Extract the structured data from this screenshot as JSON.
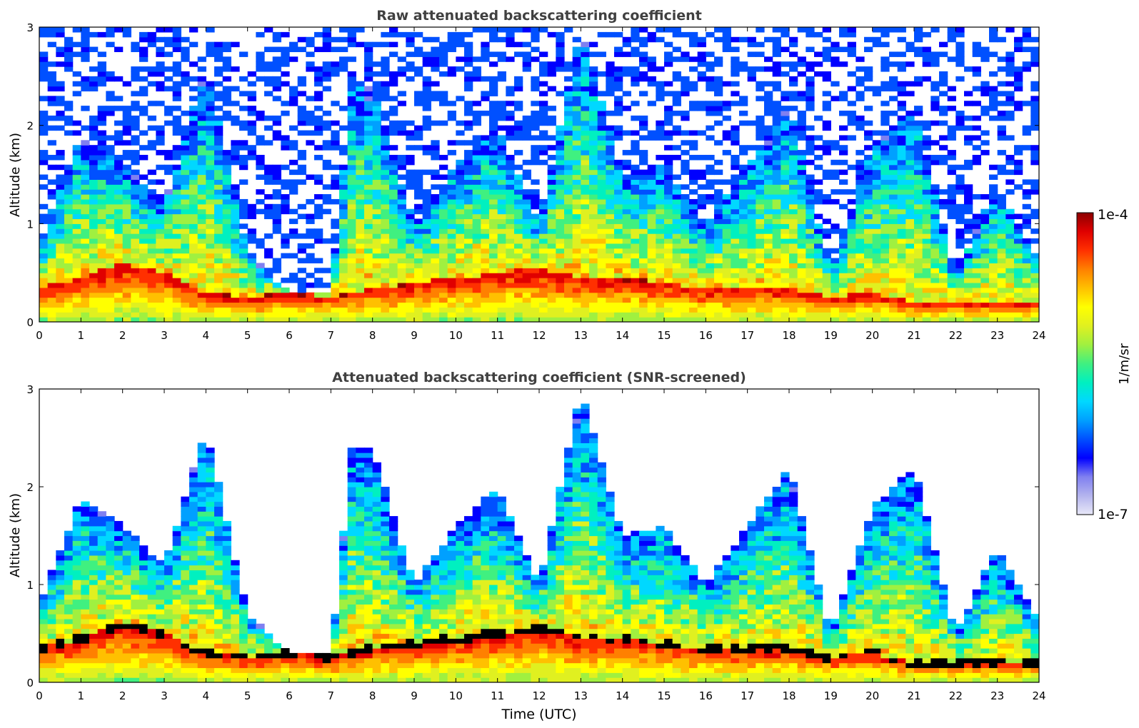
{
  "colors": {
    "colormap": [
      "#e8e8f8",
      "#b4b4ee",
      "#8080f0",
      "#0000ff",
      "#0050ff",
      "#00a0ff",
      "#00d8ff",
      "#00f0c0",
      "#40f080",
      "#a0f040",
      "#e0f020",
      "#ffff00",
      "#ffc000",
      "#ff8000",
      "#ff3000",
      "#e00000",
      "#8b0000"
    ],
    "mask_color": "#000000",
    "title_color": "#404040"
  },
  "colorbar": {
    "label": "1/m/sr",
    "max_label": "1e-4",
    "min_label": "1e-7",
    "min": 1e-07,
    "max": 0.0001,
    "scale": "log"
  },
  "chart_data": [
    {
      "type": "heatmap",
      "title": "Raw attenuated backscattering coefficient",
      "xlabel": "",
      "ylabel": "Altitude (km)",
      "x_ticks": [
        "0",
        "1",
        "2",
        "3",
        "4",
        "5",
        "6",
        "7",
        "8",
        "9",
        "10",
        "11",
        "12",
        "13",
        "14",
        "15",
        "16",
        "17",
        "18",
        "19",
        "20",
        "21",
        "22",
        "23",
        "24"
      ],
      "y_ticks": [
        "0",
        "1",
        "2",
        "3"
      ],
      "xlim": [
        0,
        24
      ],
      "ylim": [
        0,
        3
      ],
      "grid": false,
      "units": "1/m/sr",
      "scale": "log",
      "features": {
        "time_h": [
          0,
          1,
          2,
          3,
          4,
          5,
          6,
          7,
          7.5,
          8,
          9,
          10,
          11,
          12,
          13,
          14,
          15,
          16,
          17,
          18,
          19,
          20,
          21,
          22,
          23,
          24
        ],
        "boundary_layer_top_km": [
          0.35,
          0.45,
          0.6,
          0.5,
          0.3,
          0.25,
          0.3,
          0.25,
          0.3,
          0.35,
          0.4,
          0.45,
          0.5,
          0.55,
          0.45,
          0.45,
          0.4,
          0.35,
          0.35,
          0.35,
          0.25,
          0.3,
          0.2,
          0.2,
          0.2,
          0.2
        ],
        "max_cloud_top_km": [
          0.8,
          1.9,
          1.6,
          1.2,
          2.6,
          0.7,
          0.3,
          0.3,
          2.4,
          2.4,
          1.0,
          1.6,
          2.0,
          1.0,
          3.0,
          1.5,
          1.6,
          1.0,
          1.6,
          2.2,
          0.5,
          1.8,
          2.2,
          0.5,
          1.4,
          0.6
        ]
      }
    },
    {
      "type": "heatmap",
      "title": "Attenuated backscattering coefficient (SNR-screened)",
      "xlabel": "Time (UTC)",
      "ylabel": "Altitude (km)",
      "x_ticks": [
        "0",
        "1",
        "2",
        "3",
        "4",
        "5",
        "6",
        "7",
        "8",
        "9",
        "10",
        "11",
        "12",
        "13",
        "14",
        "15",
        "16",
        "17",
        "18",
        "19",
        "20",
        "21",
        "22",
        "23",
        "24"
      ],
      "y_ticks": [
        "0",
        "1",
        "2",
        "3"
      ],
      "xlim": [
        0,
        24
      ],
      "ylim": [
        0,
        3
      ],
      "grid": false,
      "units": "1/m/sr",
      "scale": "log",
      "masked_color": "black",
      "features": {
        "time_h": [
          0,
          1,
          2,
          3,
          4,
          5,
          6,
          7,
          7.5,
          8,
          9,
          10,
          11,
          12,
          13,
          14,
          15,
          16,
          17,
          18,
          19,
          20,
          21,
          22,
          23,
          24
        ],
        "boundary_layer_top_km": [
          0.35,
          0.45,
          0.6,
          0.5,
          0.3,
          0.25,
          0.3,
          0.25,
          0.3,
          0.35,
          0.4,
          0.45,
          0.5,
          0.55,
          0.45,
          0.45,
          0.4,
          0.35,
          0.35,
          0.35,
          0.25,
          0.3,
          0.2,
          0.2,
          0.2,
          0.2
        ],
        "max_cloud_top_km": [
          0.8,
          1.9,
          1.6,
          1.2,
          2.6,
          0.7,
          0.3,
          0.3,
          2.4,
          2.4,
          1.0,
          1.6,
          2.0,
          1.0,
          3.0,
          1.5,
          1.6,
          1.0,
          1.6,
          2.2,
          0.5,
          1.8,
          2.2,
          0.5,
          1.4,
          0.6
        ]
      }
    }
  ]
}
